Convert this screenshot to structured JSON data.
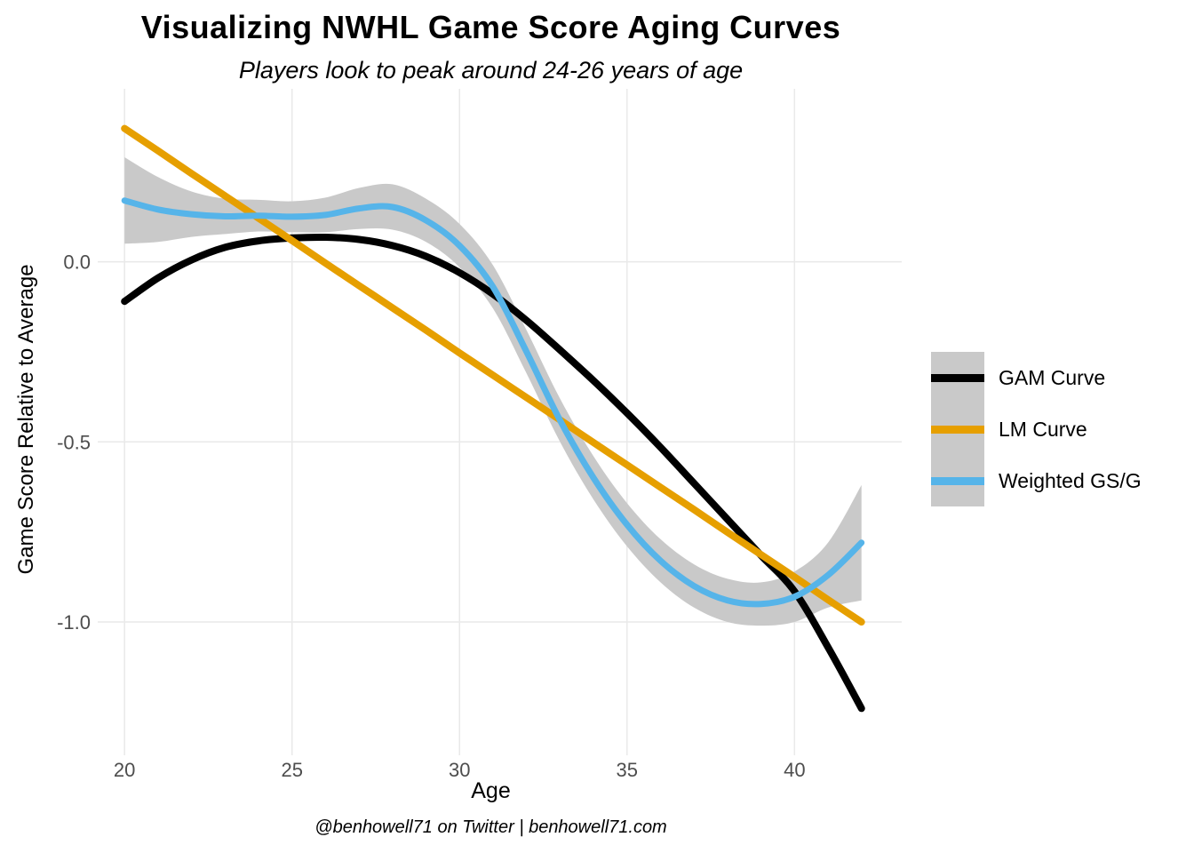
{
  "title": "Visualizing NWHL Game Score Aging Curves",
  "subtitle": "Players look to peak around 24-26 years of age",
  "caption": "@benhowell71 on Twitter | benhowell71.com",
  "colors": {
    "gam": "#000000",
    "lm": "#E69F00",
    "weighted": "#56B4E9",
    "ribbon": "#C9C9C9",
    "gridline": "#E9E9E9",
    "tick_label": "#4D4D4D"
  },
  "legend": {
    "key_background": "#C9C9C9",
    "items": [
      {
        "label": "GAM Curve",
        "color": "#000000"
      },
      {
        "label": "LM Curve",
        "color": "#E69F00"
      },
      {
        "label": "Weighted GS/G",
        "color": "#56B4E9"
      }
    ]
  },
  "chart_data": {
    "type": "line",
    "title": "Visualizing NWHL Game Score Aging Curves",
    "subtitle": "Players look to peak around 24-26 years of age",
    "xlabel": "Age",
    "ylabel": "Game Score Relative to Average",
    "grid": true,
    "legend_position": "right",
    "xlim": [
      19.2,
      43.2
    ],
    "ylim": [
      -1.37,
      0.48
    ],
    "x_ticks": [
      20,
      25,
      30,
      35,
      40
    ],
    "x_tick_labels": [
      "20",
      "25",
      "30",
      "35",
      "40"
    ],
    "y_ticks": [
      0.0,
      -0.5,
      -1.0
    ],
    "y_tick_labels": [
      "0.0",
      "-0.5",
      "-1.0"
    ],
    "x": [
      20,
      21,
      22,
      23,
      24,
      25,
      26,
      27,
      28,
      29,
      30,
      31,
      32,
      33,
      34,
      35,
      36,
      37,
      38,
      39,
      40,
      41,
      42
    ],
    "series": [
      {
        "name": "GAM Curve",
        "color": "#000000",
        "width": 8,
        "values": [
          -0.11,
          -0.045,
          0.005,
          0.04,
          0.058,
          0.066,
          0.068,
          0.062,
          0.045,
          0.015,
          -0.03,
          -0.09,
          -0.163,
          -0.245,
          -0.33,
          -0.42,
          -0.515,
          -0.615,
          -0.715,
          -0.815,
          -0.915,
          -1.07,
          -1.24
        ]
      },
      {
        "name": "LM Curve",
        "color": "#E69F00",
        "width": 8,
        "values": [
          0.37,
          0.308,
          0.245,
          0.183,
          0.121,
          0.059,
          -0.004,
          -0.066,
          -0.128,
          -0.19,
          -0.253,
          -0.315,
          -0.377,
          -0.439,
          -0.502,
          -0.564,
          -0.626,
          -0.688,
          -0.751,
          -0.813,
          -0.875,
          -0.938,
          -1.0
        ]
      },
      {
        "name": "Weighted GS/G",
        "color": "#56B4E9",
        "width": 7,
        "values": [
          0.17,
          0.145,
          0.132,
          0.126,
          0.128,
          0.125,
          0.13,
          0.148,
          0.152,
          0.115,
          0.045,
          -0.07,
          -0.25,
          -0.44,
          -0.6,
          -0.73,
          -0.83,
          -0.9,
          -0.94,
          -0.95,
          -0.93,
          -0.87,
          -0.78
        ],
        "ribbon": {
          "color": "#C9C9C9",
          "upper": [
            0.29,
            0.235,
            0.195,
            0.175,
            0.172,
            0.168,
            0.178,
            0.205,
            0.215,
            0.175,
            0.105,
            -0.01,
            -0.19,
            -0.38,
            -0.54,
            -0.67,
            -0.77,
            -0.84,
            -0.88,
            -0.89,
            -0.86,
            -0.78,
            -0.62
          ],
          "lower": [
            0.05,
            0.055,
            0.069,
            0.077,
            0.084,
            0.082,
            0.082,
            0.091,
            0.089,
            0.055,
            -0.015,
            -0.13,
            -0.31,
            -0.5,
            -0.66,
            -0.79,
            -0.89,
            -0.96,
            -1.0,
            -1.01,
            -1.0,
            -0.96,
            -0.94
          ]
        }
      }
    ]
  }
}
